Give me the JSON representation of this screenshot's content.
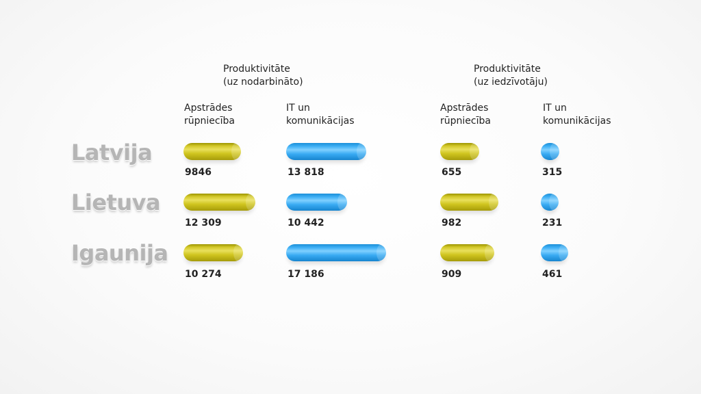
{
  "chart_data": {
    "type": "bar",
    "groups": [
      {
        "title": "Produktivitāte\n(uz nodarbināto)",
        "columns": [
          {
            "header": "Apstrādes\nrūpniecība",
            "color": "#d6cb2a"
          },
          {
            "header": "IT un\nkomunikācijas",
            "color": "#39aaf1"
          }
        ]
      },
      {
        "title": "Produktivitāte\n(uz iedzīvotāju)",
        "columns": [
          {
            "header": "Apstrādes\nrūpniecība",
            "color": "#d6cb2a"
          },
          {
            "header": "IT un\nkomunikācijas",
            "color": "#39aaf1"
          }
        ]
      }
    ],
    "categories": [
      "Latvija",
      "Lietuva",
      "Igaunija"
    ],
    "series": [
      {
        "values": [
          9846,
          12309,
          10274
        ],
        "labels": [
          "9846",
          "12 309",
          "10 274"
        ]
      },
      {
        "values": [
          13818,
          10442,
          17186
        ],
        "labels": [
          "13 818",
          "10 442",
          "17 186"
        ]
      },
      {
        "values": [
          655,
          982,
          909
        ],
        "labels": [
          "655",
          "982",
          "909"
        ]
      },
      {
        "values": [
          315,
          231,
          461
        ],
        "labels": [
          "315",
          "231",
          "461"
        ]
      }
    ]
  }
}
